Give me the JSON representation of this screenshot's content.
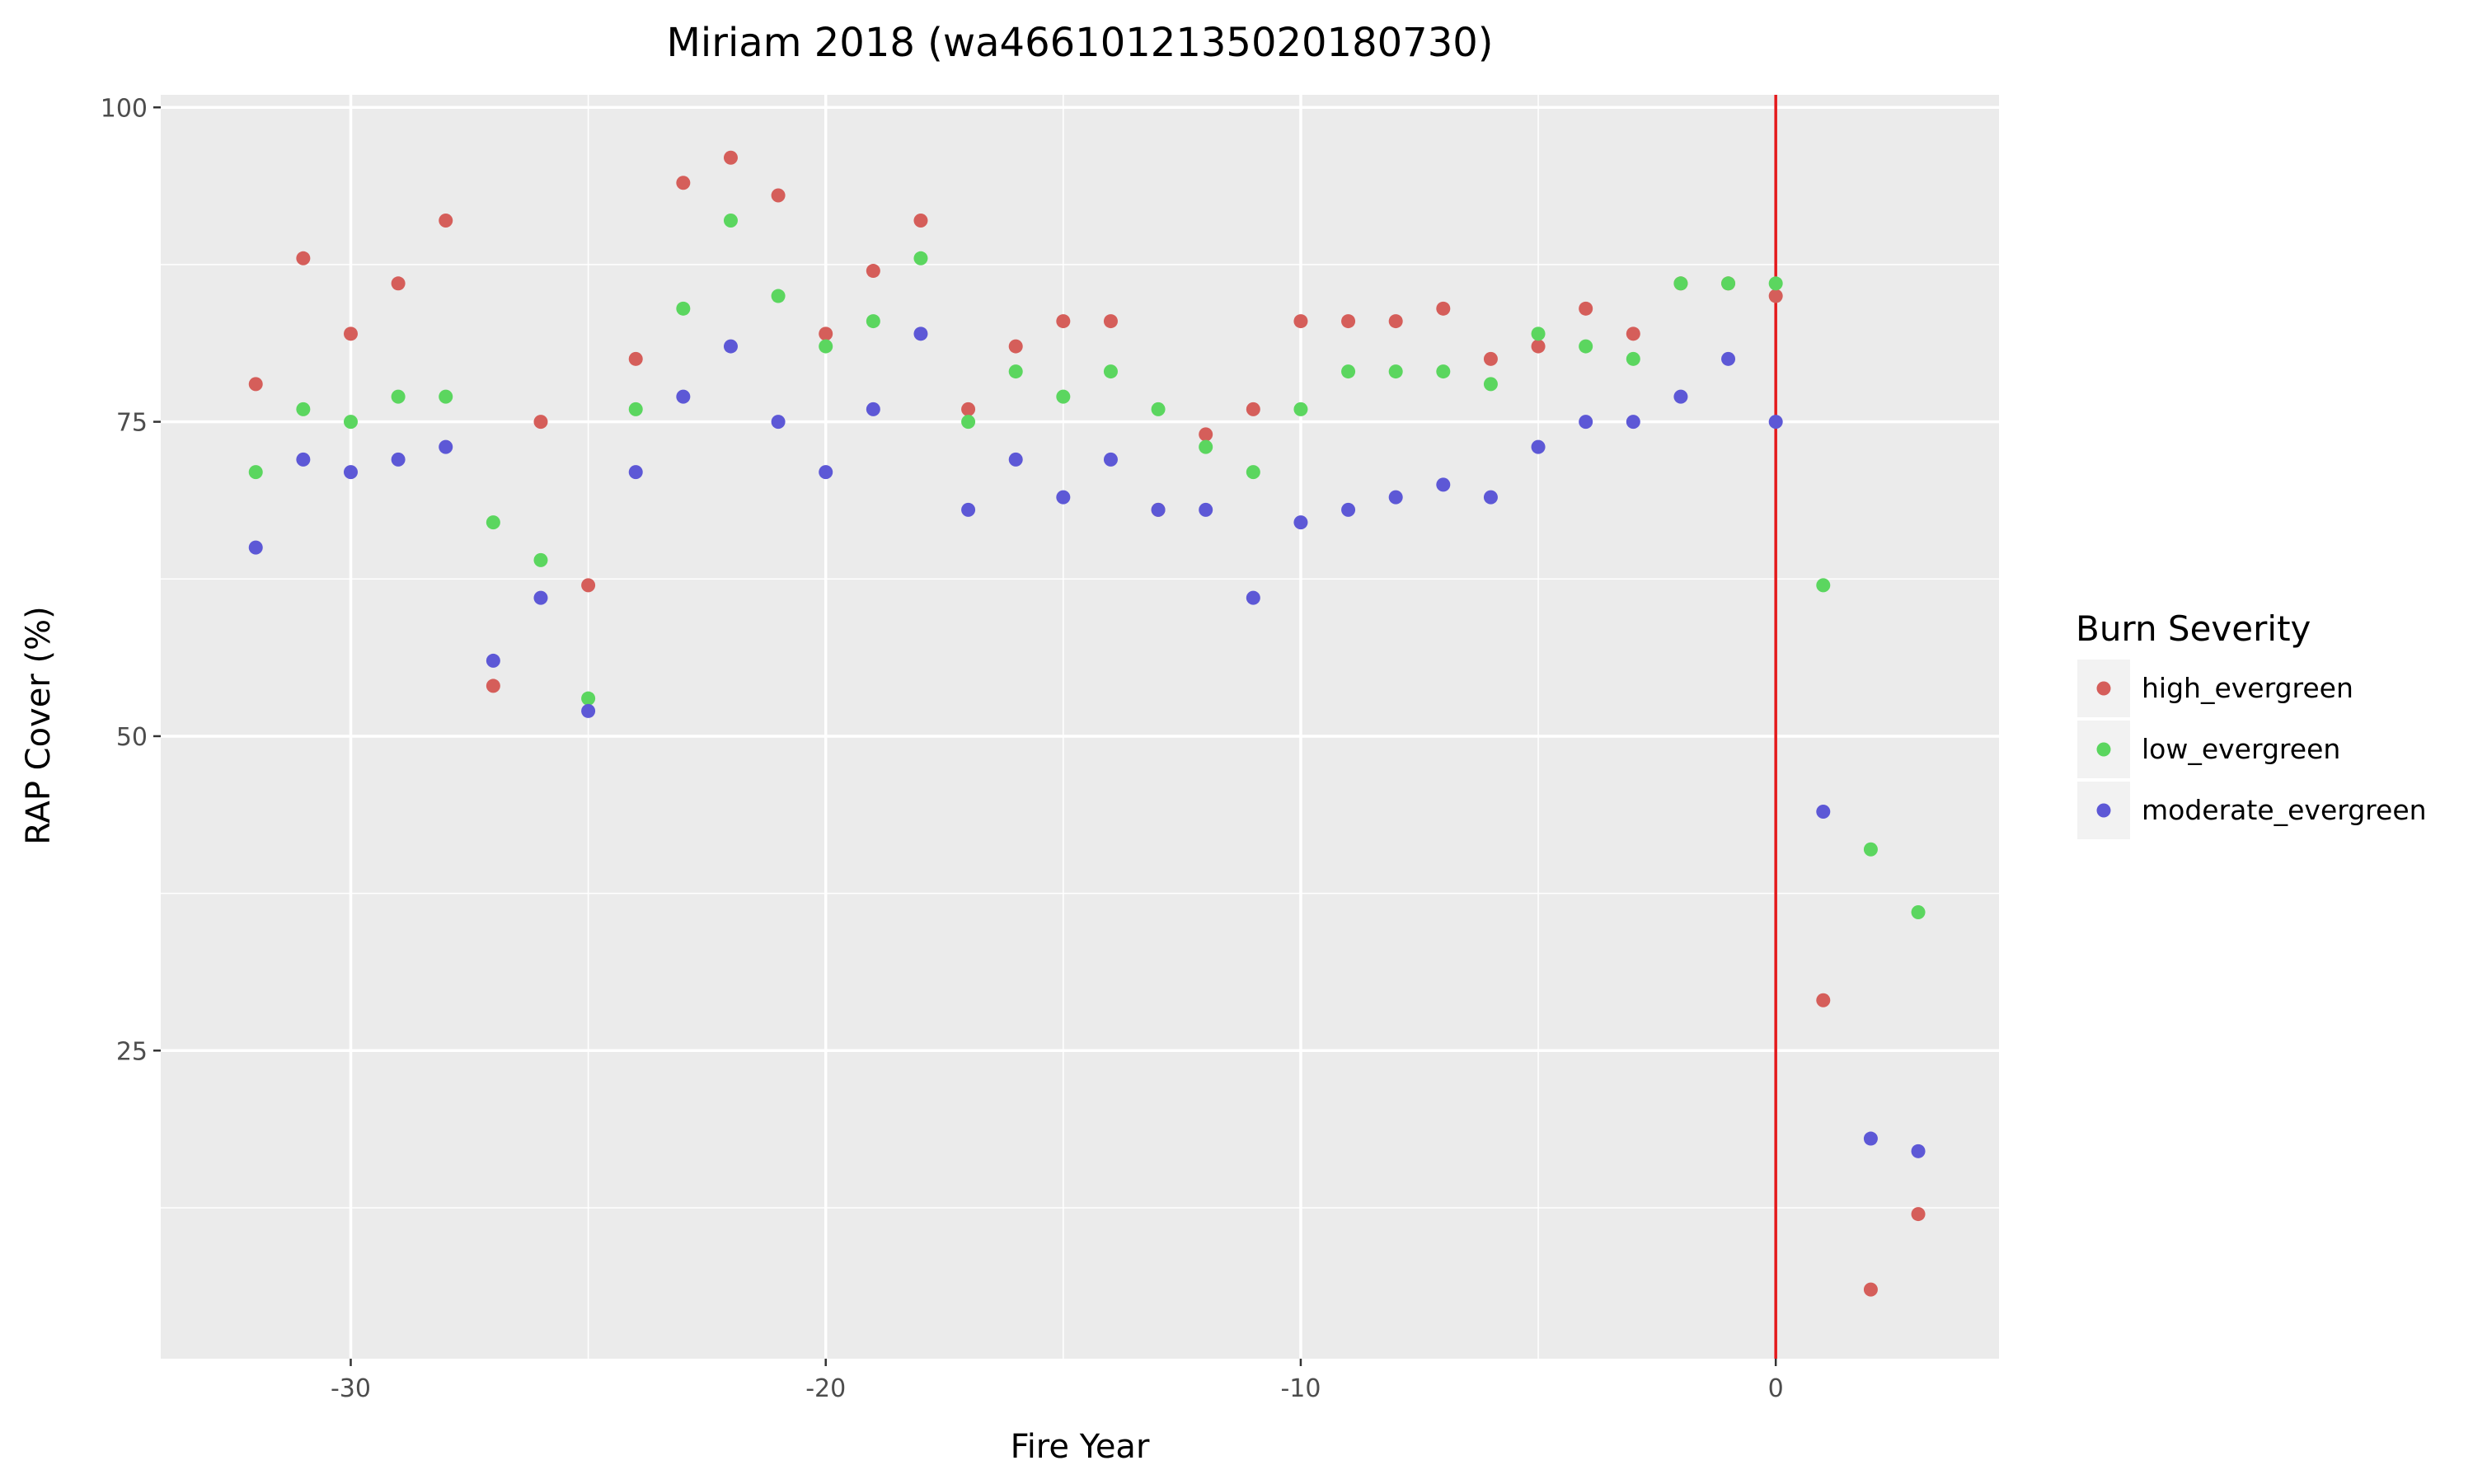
{
  "chart_data": {
    "type": "scatter",
    "title": "Miriam 2018 (wa46610121350201807​30)",
    "xlabel": "Fire Year",
    "ylabel": "RAP Cover (%)",
    "xlim": [
      -34,
      4.7
    ],
    "ylim": [
      0.5,
      101
    ],
    "x_ticks": [
      -30,
      -20,
      -10,
      0
    ],
    "x_tick_labels": [
      "-30",
      "-20",
      "-10",
      "0"
    ],
    "y_ticks": [
      25,
      50,
      75,
      100
    ],
    "y_tick_labels": [
      "25",
      "50",
      "75",
      "100"
    ],
    "grid": true,
    "panel_color": "#ebebeb",
    "reference_line": {
      "x": 0,
      "color": "#e31a1c"
    },
    "legend": {
      "title": "Burn Severity",
      "position": "right"
    },
    "series": [
      {
        "name": "high_evergreen",
        "color": "#d55e5a",
        "x": [
          -32,
          -31,
          -30,
          -29,
          -28,
          -27,
          -26,
          -25,
          -24,
          -23,
          -22,
          -21,
          -20,
          -19,
          -18,
          -17,
          -16,
          -15,
          -14,
          -13,
          -12,
          -11,
          -10,
          -9,
          -8,
          -7,
          -6,
          -5,
          -4,
          -3,
          -2,
          -1,
          0,
          1,
          2,
          3
        ],
        "y": [
          78,
          88,
          82,
          86,
          91,
          54,
          75,
          62,
          80,
          94,
          96,
          93,
          82,
          87,
          91,
          76,
          81,
          83,
          83,
          68,
          74,
          76,
          83,
          83,
          83,
          84,
          80,
          81,
          84,
          82,
          86,
          86,
          85,
          29,
          6,
          12
        ]
      },
      {
        "name": "low_evergreen",
        "color": "#5bd65f",
        "x": [
          -32,
          -31,
          -30,
          -29,
          -28,
          -27,
          -26,
          -25,
          -24,
          -23,
          -22,
          -21,
          -20,
          -19,
          -18,
          -17,
          -16,
          -15,
          -14,
          -13,
          -12,
          -11,
          -10,
          -9,
          -8,
          -7,
          -6,
          -5,
          -4,
          -3,
          -2,
          -1,
          0,
          1,
          2,
          3
        ],
        "y": [
          71,
          76,
          75,
          77,
          77,
          67,
          64,
          53,
          76,
          84,
          91,
          85,
          81,
          83,
          88,
          75,
          79,
          77,
          79,
          76,
          73,
          71,
          76,
          79,
          79,
          79,
          78,
          82,
          81,
          80,
          86,
          86,
          86,
          62,
          41,
          36
        ]
      },
      {
        "name": "moderate_evergreen",
        "color": "#5d58d6",
        "x": [
          -32,
          -31,
          -30,
          -29,
          -28,
          -27,
          -26,
          -25,
          -24,
          -23,
          -22,
          -21,
          -20,
          -19,
          -18,
          -17,
          -16,
          -15,
          -14,
          -13,
          -12,
          -11,
          -10,
          -9,
          -8,
          -7,
          -6,
          -5,
          -4,
          -3,
          -2,
          -1,
          0,
          1,
          2,
          3
        ],
        "y": [
          65,
          72,
          71,
          72,
          73,
          56,
          61,
          52,
          71,
          77,
          81,
          75,
          71,
          76,
          82,
          68,
          72,
          69,
          72,
          68,
          68,
          61,
          67,
          68,
          69,
          70,
          69,
          73,
          75,
          75,
          77,
          80,
          75,
          44,
          18,
          17
        ]
      }
    ]
  }
}
